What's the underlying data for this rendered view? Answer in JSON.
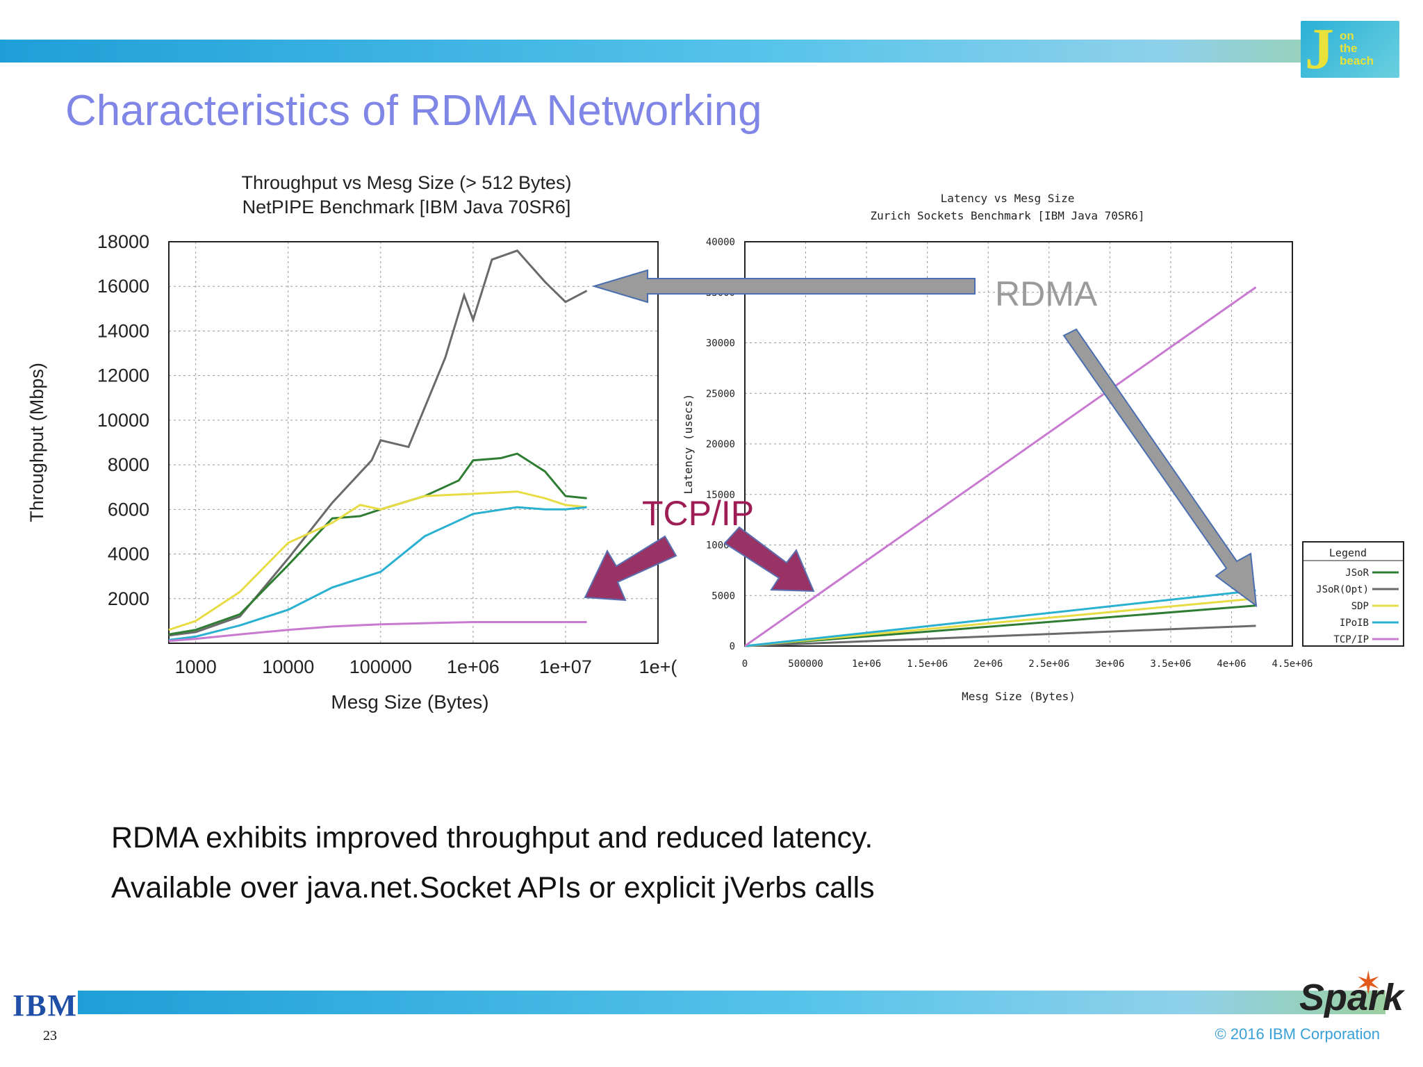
{
  "slide": {
    "title": "Characteristics of RDMA Networking",
    "bullets": [
      "RDMA exhibits improved throughput and reduced latency.",
      "Available over java.net.Socket APIs or explicit jVerbs calls"
    ],
    "page_number": "23",
    "copyright": "© 2016 IBM Corporation",
    "logos": {
      "ibm": "IBM",
      "spark": "Spark",
      "conference_big": "J",
      "conference_words": [
        "on",
        "the",
        "beach"
      ]
    },
    "callouts": {
      "rdma": "RDMA",
      "tcpip": "TCP/IP"
    },
    "colors": {
      "title": "#7f86e6",
      "rdma_arrow": "#9b9b9b",
      "tcpip_arrow": "#993366",
      "band": "#3fb2e2"
    }
  },
  "chart_data": [
    {
      "type": "line",
      "title": "Throughput vs Mesg Size (> 512 Bytes)",
      "subtitle": "NetPIPE Benchmark [IBM Java 70SR6]",
      "xlabel": "Mesg Size (Bytes)",
      "ylabel": "Throughput (Mbps)",
      "xscale": "log",
      "xlim": [
        512,
        100000000
      ],
      "ylim": [
        0,
        18000
      ],
      "xticks": [
        "1000",
        "10000",
        "100000",
        "1e+06",
        "1e+07",
        "1e+("
      ],
      "yticks": [
        "2000",
        "4000",
        "6000",
        "8000",
        "10000",
        "12000",
        "14000",
        "16000",
        "18000"
      ],
      "grid": true,
      "series": [
        {
          "color": "#6a6a6a",
          "x": [
            512,
            1000,
            3000,
            10000,
            30000,
            80000,
            100000,
            200000,
            500000,
            800000,
            1000000,
            1600000,
            3000000,
            6000000,
            10000000,
            17000000
          ],
          "y": [
            350,
            500,
            1200,
            3800,
            6300,
            8200,
            9100,
            8800,
            12800,
            15600,
            14500,
            17200,
            17600,
            16200,
            15300,
            15800
          ]
        },
        {
          "color": "#2e7d32",
          "x": [
            512,
            1000,
            3000,
            10000,
            30000,
            60000,
            100000,
            300000,
            700000,
            1000000,
            2000000,
            3000000,
            6000000,
            10000000,
            17000000
          ],
          "y": [
            400,
            600,
            1300,
            3500,
            5600,
            5700,
            6000,
            6600,
            7300,
            8200,
            8300,
            8500,
            7700,
            6600,
            6500
          ]
        },
        {
          "color": "#e8dc44",
          "x": [
            512,
            1000,
            3000,
            10000,
            30000,
            60000,
            100000,
            300000,
            1000000,
            3000000,
            6000000,
            10000000,
            17000000
          ],
          "y": [
            600,
            1000,
            2300,
            4500,
            5400,
            6200,
            6000,
            6600,
            6700,
            6800,
            6500,
            6200,
            6100
          ]
        },
        {
          "color": "#2ab0d0",
          "x": [
            512,
            1000,
            3000,
            10000,
            30000,
            100000,
            300000,
            1000000,
            3000000,
            6000000,
            10000000,
            17000000
          ],
          "y": [
            150,
            300,
            800,
            1500,
            2500,
            3200,
            4800,
            5800,
            6100,
            6000,
            6000,
            6100
          ]
        },
        {
          "color": "#c87ad0",
          "x": [
            512,
            1000,
            3000,
            10000,
            30000,
            100000,
            300000,
            1000000,
            3000000,
            10000000,
            17000000
          ],
          "y": [
            100,
            200,
            400,
            600,
            750,
            850,
            900,
            950,
            950,
            950,
            950
          ]
        }
      ]
    },
    {
      "type": "line",
      "title": "Latency vs Mesg Size",
      "subtitle": "Zurich Sockets Benchmark [IBM Java 70SR6]",
      "xlabel": "Mesg Size (Bytes)",
      "ylabel": "Latency (usecs)",
      "xlim": [
        0,
        4500000
      ],
      "ylim": [
        0,
        40000
      ],
      "xticks": [
        "0",
        "500000",
        "1e+06",
        "1.5e+06",
        "2e+06",
        "2.5e+06",
        "3e+06",
        "3.5e+06",
        "4e+06",
        "4.5e+06"
      ],
      "yticks": [
        "0",
        "5000",
        "10000",
        "15000",
        "20000",
        "25000",
        "30000",
        "35000",
        "40000"
      ],
      "grid": true,
      "legend": {
        "title": "Legend",
        "placement": "right",
        "entries": [
          {
            "label": "JSoR",
            "color": "#2e7d32"
          },
          {
            "label": "JSoR(Opt)",
            "color": "#6a6a6a"
          },
          {
            "label": "SDP",
            "color": "#e8dc44"
          },
          {
            "label": "IPoIB",
            "color": "#2ab0d0"
          },
          {
            "label": "TCP/IP",
            "color": "#c87ad0"
          }
        ]
      },
      "series": [
        {
          "name": "JSoR",
          "color": "#2e7d32",
          "x": [
            0,
            4200000
          ],
          "y": [
            0,
            4000
          ]
        },
        {
          "name": "JSoR(Opt)",
          "color": "#6a6a6a",
          "x": [
            0,
            4200000
          ],
          "y": [
            0,
            2000
          ]
        },
        {
          "name": "SDP",
          "color": "#e8dc44",
          "x": [
            0,
            4200000
          ],
          "y": [
            0,
            4700
          ]
        },
        {
          "name": "IPoIB",
          "color": "#2ab0d0",
          "x": [
            0,
            4200000
          ],
          "y": [
            0,
            5500
          ]
        },
        {
          "name": "TCP/IP",
          "color": "#c87ad0",
          "x": [
            0,
            4200000
          ],
          "y": [
            0,
            35500
          ]
        }
      ]
    }
  ]
}
